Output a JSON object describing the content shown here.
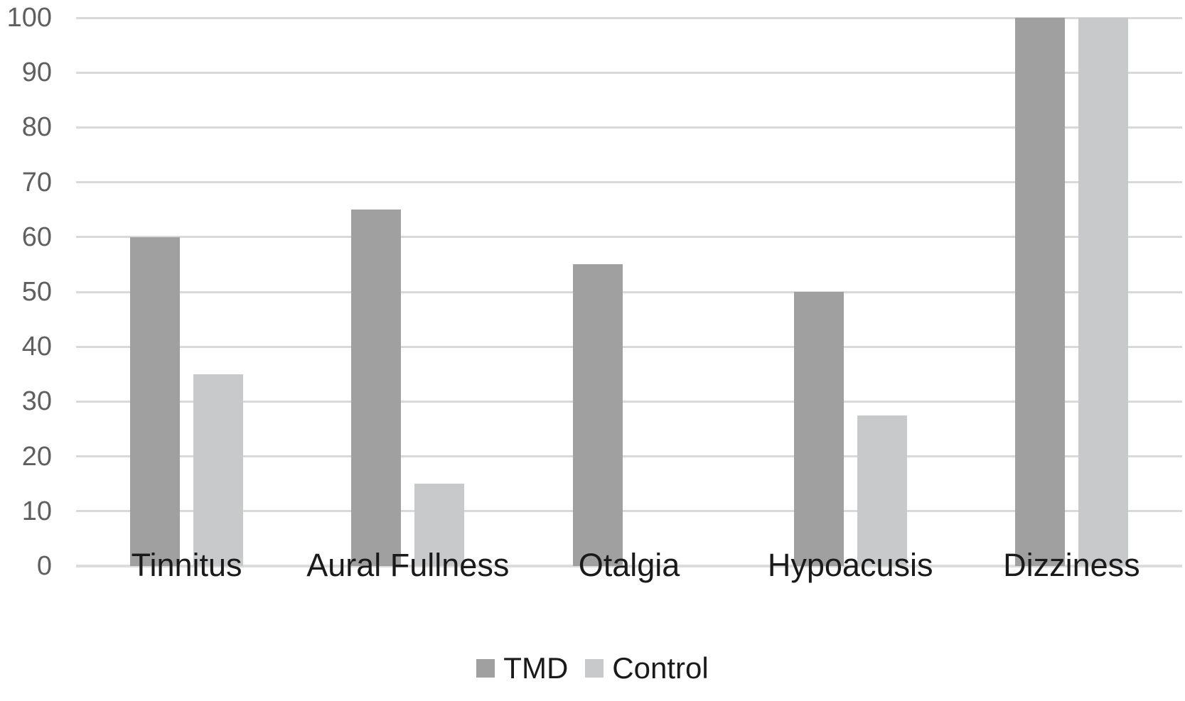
{
  "chart_data": {
    "type": "bar",
    "title": "",
    "xlabel": "",
    "ylabel": "",
    "categories": [
      "Tinnitus",
      "Aural Fullness",
      "Otalgia",
      "Hypoacusis",
      "Dizziness"
    ],
    "series": [
      {
        "name": "TMD",
        "color": "#a0a0a1",
        "values": [
          60,
          65,
          55,
          50,
          100
        ]
      },
      {
        "name": "Control",
        "color": "#c8c9ca",
        "values": [
          35,
          15,
          0,
          27.5,
          100
        ]
      }
    ],
    "ylim": [
      0,
      100
    ],
    "ytick_interval": 10,
    "ytick_labels": [
      "0",
      "10",
      "20",
      "30",
      "40",
      "50",
      "60",
      "70",
      "80",
      "90",
      "100"
    ],
    "grid": true,
    "legend_position": "bottom-center",
    "colors": {
      "background": "#ffffff",
      "gridline": "#d9d9d9",
      "axis_baseline": "#dcdcdc",
      "tick_label": "#5f5f5f",
      "category_label": "#1a1a1a",
      "legend_label": "#1a1a1a"
    }
  }
}
